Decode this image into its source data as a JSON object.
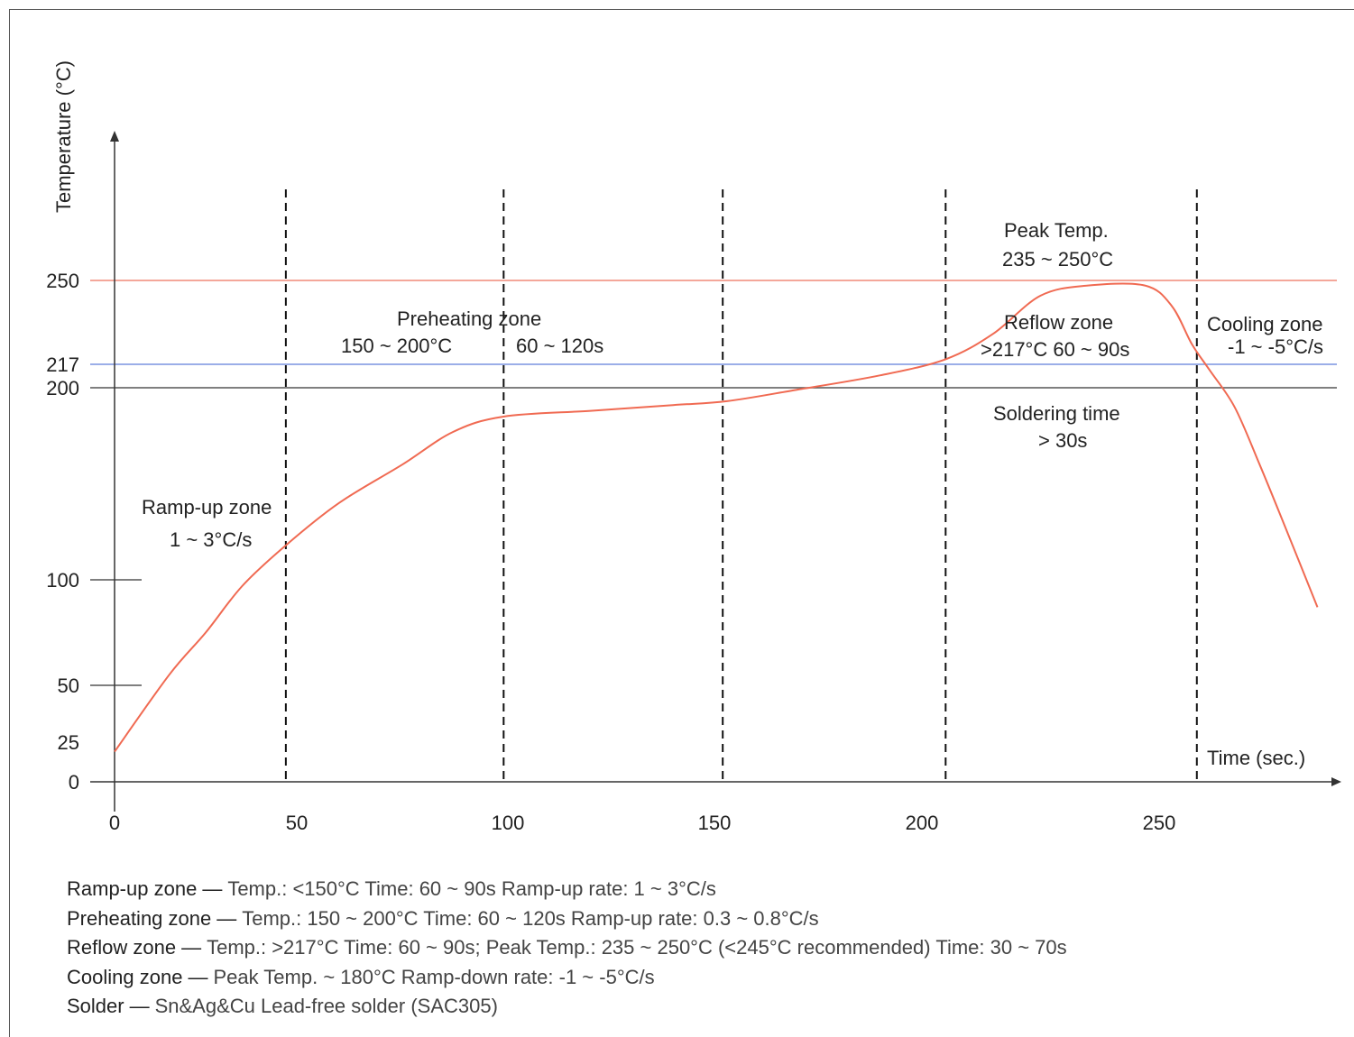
{
  "chart_data": {
    "type": "line",
    "title": "",
    "xlabel": "Time (sec.)",
    "ylabel": "Temperature (°C)",
    "xlim": [
      0,
      300
    ],
    "ylim": [
      0,
      250
    ],
    "x_ticks": [
      0,
      50,
      100,
      150,
      200,
      250
    ],
    "y_ticks": [
      0,
      25,
      50,
      100,
      200,
      217,
      250
    ],
    "grid": false,
    "reference_lines": [
      {
        "y": 250,
        "color": "#f08a78"
      },
      {
        "y": 217,
        "color": "#7a93e0"
      },
      {
        "y": 200,
        "color": "#555555"
      }
    ],
    "zone_boundaries_x": [
      47,
      99,
      152,
      205,
      265
    ],
    "series": [
      {
        "color": "#f06a52",
        "points": [
          [
            0,
            19
          ],
          [
            15,
            55
          ],
          [
            25,
            75
          ],
          [
            35,
            97
          ],
          [
            47,
            118
          ],
          [
            60,
            140
          ],
          [
            75,
            160
          ],
          [
            87,
            177
          ],
          [
            99,
            185
          ],
          [
            120,
            188
          ],
          [
            140,
            191
          ],
          [
            153,
            193
          ],
          [
            170,
            199
          ],
          [
            190,
            209
          ],
          [
            205,
            219
          ],
          [
            215,
            229
          ],
          [
            225,
            244
          ],
          [
            235,
            248
          ],
          [
            247,
            248
          ],
          [
            255,
            240
          ],
          [
            263,
            225
          ],
          [
            270,
            213
          ],
          [
            280,
            190
          ],
          [
            290,
            160
          ],
          [
            300,
            128
          ],
          [
            313,
            87
          ]
        ]
      }
    ],
    "annotations": [
      {
        "line1": "Ramp-up zone",
        "line2": "1 ~ 3°C/s"
      },
      {
        "line1": "Preheating zone",
        "line2": "150 ~ 200°C",
        "line3": "60 ~ 120s"
      },
      {
        "line1": "Peak Temp.",
        "line2": "235 ~ 250°C"
      },
      {
        "line1": "Reflow zone",
        "line2": ">217°C  60 ~ 90s"
      },
      {
        "line1": "Soldering time",
        "line2": "> 30s"
      },
      {
        "line1": "Cooling zone",
        "line2": "-1 ~ -5°C/s"
      }
    ]
  },
  "notes": [
    {
      "label": "Ramp-up zone",
      "sep": "—",
      "text": "Temp.: <150°C  Time: 60 ~ 90s  Ramp-up rate: 1 ~ 3°C/s"
    },
    {
      "label": "Preheating zone",
      "sep": "—",
      "text": "Temp.: 150 ~ 200°C  Time: 60 ~ 120s  Ramp-up rate: 0.3 ~ 0.8°C/s"
    },
    {
      "label": "Reflow zone",
      "sep": "—",
      "text": "Temp.: >217°C  Time: 60 ~ 90s; Peak Temp.: 235 ~ 250°C (<245°C recommended)  Time: 30 ~ 70s"
    },
    {
      "label": "Cooling zone",
      "sep": "—",
      "text": "Peak Temp. ~ 180°C  Ramp-down rate: -1 ~ -5°C/s"
    },
    {
      "label": "Solder",
      "sep": "—",
      "text": "Sn&Ag&Cu Lead-free solder (SAC305)"
    }
  ]
}
